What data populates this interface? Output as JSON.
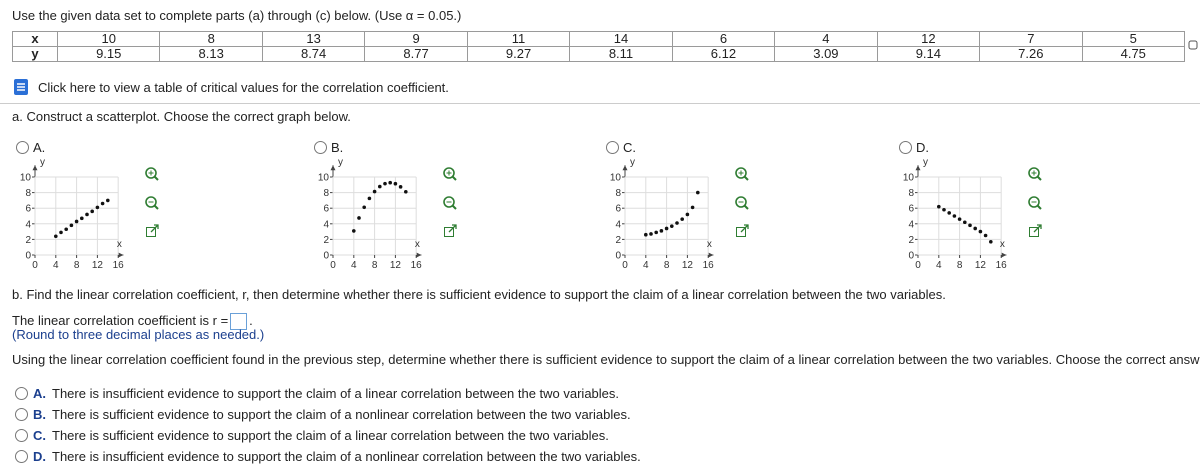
{
  "instruction": "Use the given data set to complete parts (a) through (c) below. (Use α = 0.05.)",
  "table": {
    "rows": [
      [
        "x",
        10,
        8,
        13,
        9,
        11,
        14,
        6,
        4,
        12,
        7,
        5
      ],
      [
        "y",
        9.15,
        8.13,
        8.74,
        8.77,
        9.27,
        8.11,
        6.12,
        3.09,
        9.14,
        7.26,
        4.75
      ]
    ]
  },
  "link": "Click here to view a table of critical values for the correlation coefficient.",
  "part_a": {
    "prompt": "a. Construct a scatterplot. Choose the correct graph below.",
    "axes": {
      "x_label": "x",
      "y_label": "y",
      "xlim": [
        0,
        17
      ],
      "ylim": [
        0,
        11.5
      ],
      "xticks": [
        0,
        4,
        8,
        12,
        16
      ],
      "yticks": [
        0,
        2,
        4,
        6,
        8,
        10
      ]
    },
    "options": [
      {
        "label": "A.",
        "type": "scatter",
        "x": [
          4,
          5,
          6,
          7,
          8,
          9,
          10,
          11,
          12,
          13,
          14
        ],
        "y": [
          2.4,
          2.9,
          3.3,
          3.8,
          4.3,
          4.7,
          5.2,
          5.6,
          6.1,
          6.6,
          7.0
        ]
      },
      {
        "label": "B.",
        "type": "scatter",
        "x": [
          4,
          5,
          6,
          7,
          8,
          9,
          10,
          11,
          12,
          13,
          14
        ],
        "y": [
          3.09,
          4.75,
          6.12,
          7.26,
          8.13,
          8.77,
          9.15,
          9.27,
          9.14,
          8.74,
          8.11
        ]
      },
      {
        "label": "C.",
        "type": "scatter",
        "x": [
          4,
          5,
          6,
          7,
          8,
          9,
          10,
          11,
          12,
          13,
          14
        ],
        "y": [
          2.6,
          2.7,
          2.9,
          3.1,
          3.4,
          3.7,
          4.1,
          4.6,
          5.2,
          6.1,
          8.0
        ]
      },
      {
        "label": "D.",
        "type": "scatter",
        "x": [
          4,
          5,
          6,
          7,
          8,
          9,
          10,
          11,
          12,
          13,
          14
        ],
        "y": [
          6.2,
          5.8,
          5.4,
          5.0,
          4.6,
          4.2,
          3.8,
          3.4,
          3.0,
          2.5,
          1.7
        ]
      }
    ]
  },
  "part_b": {
    "prompt": "b. Find the linear correlation coefficient, r, then determine whether there is sufficient evidence to support the claim of a linear correlation between the two variables.",
    "answer_prompt": "The linear correlation coefficient is r =",
    "answer_suffix": ".",
    "hint": "(Round to three decimal places as needed.)",
    "question": "Using the linear correlation coefficient found in the previous step, determine whether there is sufficient evidence to support the claim of a linear correlation between the two variables. Choose the correct answer below.",
    "options": [
      {
        "label": "A.",
        "text": "There is insufficient evidence to support the claim of a linear correlation between the two variables."
      },
      {
        "label": "B.",
        "text": "There is sufficient evidence to support the claim of a nonlinear correlation between the two variables."
      },
      {
        "label": "C.",
        "text": "There is sufficient evidence to support the claim of a linear correlation between the two variables."
      },
      {
        "label": "D.",
        "text": "There is insufficient evidence to support the claim of a nonlinear correlation between the two variables."
      }
    ]
  }
}
